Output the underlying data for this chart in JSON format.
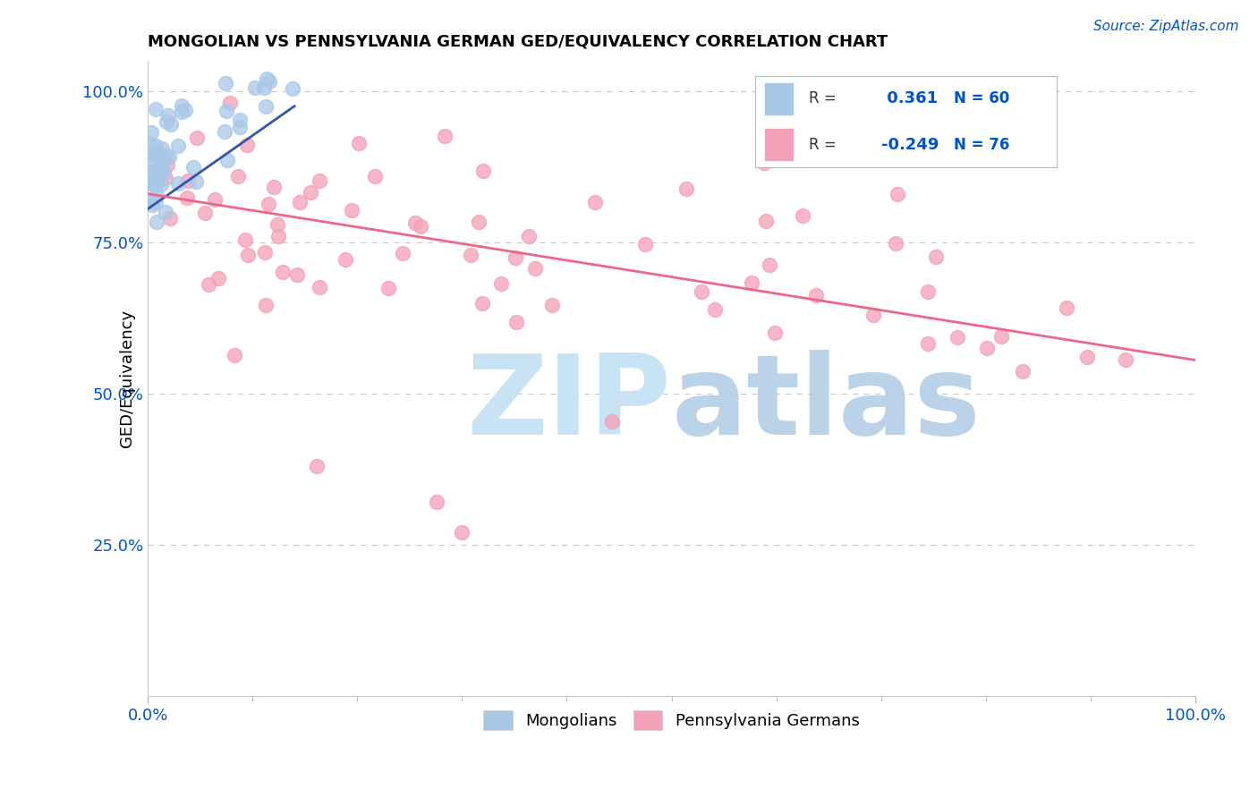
{
  "title": "MONGOLIAN VS PENNSYLVANIA GERMAN GED/EQUIVALENCY CORRELATION CHART",
  "source": "Source: ZipAtlas.com",
  "ylabel": "GED/Equivalency",
  "mongolian_R": 0.361,
  "mongolian_N": 60,
  "penn_german_R": -0.249,
  "penn_german_N": 76,
  "mongolian_color": "#a8c8e8",
  "penn_german_color": "#f4a0b8",
  "mongolian_edge_color": "#a8c8e8",
  "penn_german_edge_color": "#f4a0b8",
  "mongolian_line_color": "#3355aa",
  "penn_german_line_color": "#ee6688",
  "watermark_zip_color": "#c8e4f4",
  "watermark_atlas_color": "#b0cce4",
  "background_color": "#ffffff",
  "grid_color": "#cccccc",
  "tick_color": "#0055cc",
  "title_color": "#000000",
  "source_color": "#0055cc",
  "ylabel_color": "#000000",
  "xlim": [
    0.0,
    1.0
  ],
  "ylim": [
    0.0,
    1.05
  ],
  "ytick_values": [
    0.25,
    0.5,
    0.75,
    1.0
  ],
  "ytick_labels": [
    "25.0%",
    "50.0%",
    "75.0%",
    "100.0%"
  ],
  "marker_size": 130,
  "penn_line_start_y": 0.83,
  "penn_line_end_y": 0.555,
  "mon_line_start_x": 0.0,
  "mon_line_start_y": 0.805,
  "mon_line_end_x": 0.14,
  "mon_line_end_y": 0.975
}
